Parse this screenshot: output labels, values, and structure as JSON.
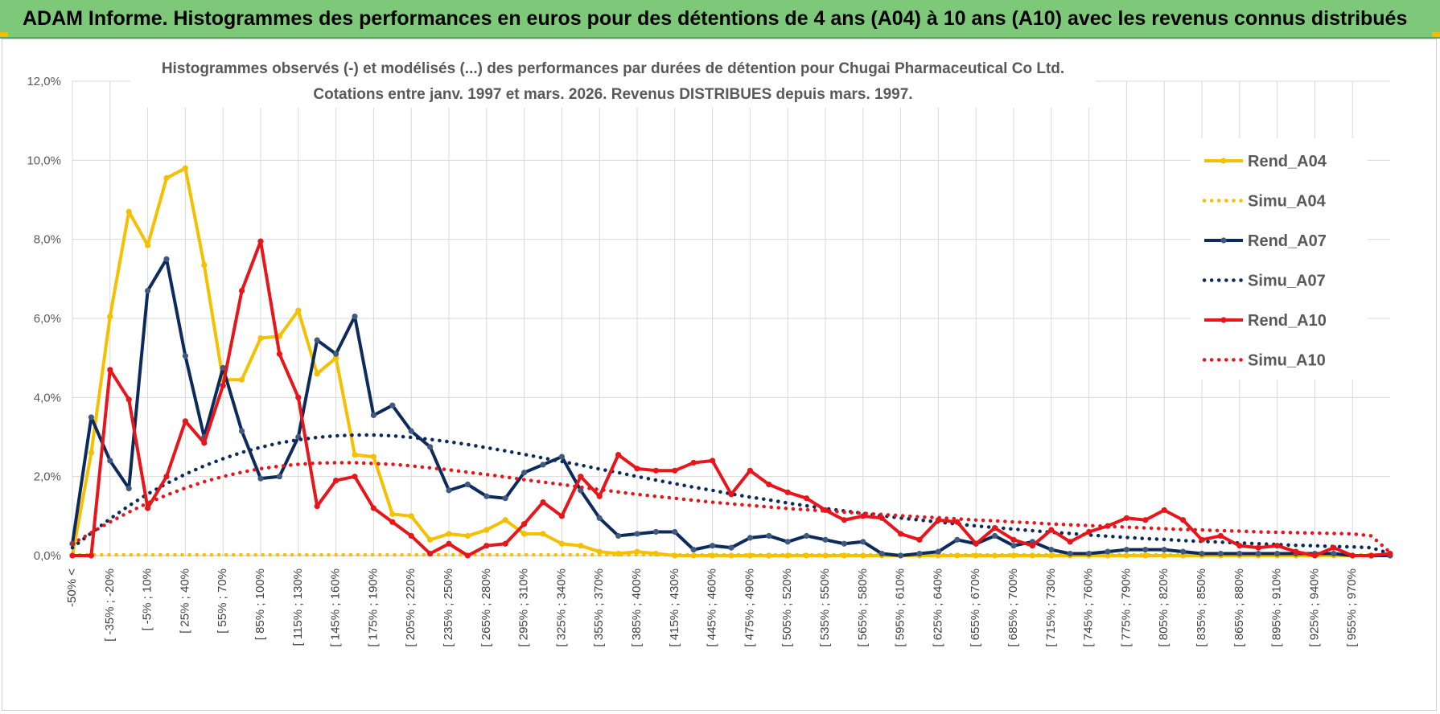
{
  "banner": {
    "text": "ADAM Informe. Histogrammes des performances en euros pour des détentions de 4 ans (A04) à 10 ans (A10) avec les revenus connus distribués"
  },
  "chart_data": {
    "type": "line",
    "title_line1": "Histogrammes observés (-) et modélisés (...) des performances par durées de détention pour Chugai Pharmaceutical Co Ltd.",
    "title_line2": "Cotations entre janv. 1997 et mars. 2026. Revenus DISTRIBUES depuis mars. 1997.",
    "ylim": [
      0,
      12
    ],
    "y_ticks": [
      "0,0%",
      "2,0%",
      "4,0%",
      "6,0%",
      "8,0%",
      "10,0%",
      "12,0%"
    ],
    "y_unit": "%",
    "grid": true,
    "legend_position": "right",
    "x_tick_labels": [
      "-50% <",
      "[ -35% ; -20%",
      "[ -5% ; 10%",
      "[ 25% ; 40%",
      "[ 55% ; 70%",
      "[ 85% ; 100%",
      "[ 115% ; 130%",
      "[ 145% ; 160%",
      "[ 175% ; 190%",
      "[ 205% ; 220%",
      "[ 235% ; 250%",
      "[ 265% ; 280%",
      "[ 295% ; 310%",
      "[ 325% ; 340%",
      "[ 355% ; 370%",
      "[ 385% ; 400%",
      "[ 415% ; 430%",
      "[ 445% ; 460%",
      "[ 475% ; 490%",
      "[ 505% ; 520%",
      "[ 535% ; 550%",
      "[ 565% ; 580%",
      "[ 595% ; 610%",
      "[ 625% ; 640%",
      "[ 655% ; 670%",
      "[ 685% ; 700%",
      "[ 715% ; 730%",
      "[ 745% ; 760%",
      "[ 775% ; 790%",
      "[ 805% ; 820%",
      "[ 835% ; 850%",
      "[ 865% ; 880%",
      "[ 895% ; 910%",
      "[ 925% ; 940%",
      "[ 955% ; 970%"
    ],
    "series": [
      {
        "name": "Rend_A04",
        "color": "#f5c000",
        "style": "solid",
        "values": [
          0.0,
          2.6,
          6.05,
          8.7,
          7.85,
          9.55,
          9.8,
          7.35,
          4.45,
          4.45,
          5.5,
          5.55,
          6.2,
          4.6,
          5.0,
          2.55,
          2.5,
          1.05,
          1.0,
          0.4,
          0.55,
          0.5,
          0.65,
          0.9,
          0.55,
          0.55,
          0.3,
          0.25,
          0.1,
          0.05,
          0.1,
          0.05,
          0,
          0,
          0,
          0,
          0,
          0,
          0,
          0,
          0,
          0,
          0,
          0,
          0,
          0,
          0,
          0,
          0,
          0,
          0,
          0,
          0,
          0,
          0,
          0,
          0,
          0,
          0,
          0,
          0,
          0,
          0,
          0,
          0,
          0,
          0,
          0,
          0,
          0,
          0
        ]
      },
      {
        "name": "Simu_A04",
        "color": "#f5c000",
        "style": "dotted",
        "values": [
          0.02,
          0.02,
          0.02,
          0.02,
          0.02,
          0.02,
          0.02,
          0.02,
          0.02,
          0.02,
          0.02,
          0.02,
          0.02,
          0.02,
          0.02,
          0.02,
          0.02,
          0.02,
          0.02,
          0.02,
          0.02,
          0.02,
          0.02,
          0.02,
          0.02,
          0.02,
          0.02,
          0.02,
          0.02,
          0.02,
          0.02,
          0.02,
          0.02,
          0.02,
          0.02,
          0.02,
          0.02,
          0.02,
          0.02,
          0.02,
          0.02,
          0.02,
          0.02,
          0.02,
          0.02,
          0.02,
          0.02,
          0.02,
          0.02,
          0.02,
          0.02,
          0.02,
          0.02,
          0.02,
          0.02,
          0.02,
          0.02,
          0.02,
          0.02,
          0.02,
          0.02,
          0.02,
          0.02,
          0.02,
          0.02,
          0.02,
          0.02,
          0.02,
          0.02,
          0.02,
          0.02
        ]
      },
      {
        "name": "Rend_A07",
        "color": "#0d2a5c",
        "style": "solid",
        "values": [
          0.3,
          3.5,
          2.4,
          1.7,
          6.7,
          7.5,
          5.05,
          3.0,
          4.75,
          3.15,
          1.95,
          2.0,
          3.0,
          5.45,
          5.1,
          6.05,
          3.55,
          3.8,
          3.15,
          2.75,
          1.65,
          1.8,
          1.5,
          1.45,
          2.1,
          2.3,
          2.5,
          1.65,
          0.95,
          0.5,
          0.55,
          0.6,
          0.6,
          0.15,
          0.25,
          0.2,
          0.45,
          0.5,
          0.35,
          0.5,
          0.4,
          0.3,
          0.35,
          0.05,
          0.0,
          0.05,
          0.1,
          0.4,
          0.3,
          0.5,
          0.25,
          0.35,
          0.15,
          0.05,
          0.05,
          0.1,
          0.15,
          0.15,
          0.15,
          0.1,
          0.05,
          0.05,
          0.05,
          0.05,
          0.05,
          0.05,
          0.05,
          0.05,
          0.0,
          0.0,
          0.0
        ]
      },
      {
        "name": "Simu_A07",
        "color": "#0d2a5c",
        "style": "dotted",
        "values": [
          0.2,
          0.57,
          0.93,
          1.26,
          1.56,
          1.82,
          2.06,
          2.27,
          2.45,
          2.61,
          2.74,
          2.85,
          2.93,
          2.99,
          3.03,
          3.05,
          3.05,
          3.03,
          2.99,
          2.94,
          2.88,
          2.81,
          2.73,
          2.65,
          2.56,
          2.47,
          2.38,
          2.29,
          2.19,
          2.1,
          2.0,
          1.91,
          1.82,
          1.73,
          1.65,
          1.56,
          1.48,
          1.41,
          1.33,
          1.26,
          1.19,
          1.13,
          1.07,
          1.01,
          0.95,
          0.9,
          0.85,
          0.8,
          0.75,
          0.71,
          0.67,
          0.63,
          0.59,
          0.56,
          0.52,
          0.49,
          0.46,
          0.43,
          0.41,
          0.38,
          0.36,
          0.34,
          0.32,
          0.3,
          0.28,
          0.26,
          0.25,
          0.23,
          0.22,
          0.2,
          0.05
        ]
      },
      {
        "name": "Rend_A10",
        "color": "#e8151b",
        "style": "solid",
        "values": [
          0.0,
          0.0,
          4.7,
          3.95,
          1.2,
          2.0,
          3.4,
          2.85,
          4.3,
          6.7,
          7.95,
          5.1,
          4.0,
          1.25,
          1.9,
          2.0,
          1.2,
          0.85,
          0.5,
          0.05,
          0.3,
          0.0,
          0.25,
          0.3,
          0.8,
          1.35,
          1.0,
          2.0,
          1.5,
          2.55,
          2.2,
          2.15,
          2.15,
          2.35,
          2.4,
          1.55,
          2.15,
          1.8,
          1.6,
          1.45,
          1.15,
          0.9,
          1.0,
          0.95,
          0.55,
          0.4,
          0.9,
          0.85,
          0.3,
          0.7,
          0.4,
          0.25,
          0.65,
          0.35,
          0.6,
          0.75,
          0.95,
          0.9,
          1.15,
          0.9,
          0.4,
          0.5,
          0.25,
          0.2,
          0.25,
          0.1,
          0.0,
          0.2,
          0.0,
          0.0,
          0.05
        ]
      },
      {
        "name": "Simu_A10",
        "color": "#e8151b",
        "style": "dotted",
        "values": [
          0.3,
          0.58,
          0.85,
          1.1,
          1.33,
          1.53,
          1.71,
          1.87,
          2.0,
          2.11,
          2.2,
          2.26,
          2.31,
          2.34,
          2.35,
          2.35,
          2.33,
          2.31,
          2.27,
          2.22,
          2.17,
          2.11,
          2.05,
          1.99,
          1.92,
          1.86,
          1.8,
          1.73,
          1.67,
          1.61,
          1.55,
          1.5,
          1.45,
          1.4,
          1.35,
          1.31,
          1.27,
          1.23,
          1.19,
          1.16,
          1.13,
          1.1,
          1.07,
          1.04,
          1.01,
          0.98,
          0.96,
          0.93,
          0.9,
          0.88,
          0.85,
          0.83,
          0.8,
          0.78,
          0.76,
          0.74,
          0.72,
          0.7,
          0.68,
          0.66,
          0.65,
          0.63,
          0.62,
          0.6,
          0.59,
          0.58,
          0.57,
          0.56,
          0.55,
          0.5,
          0.08
        ]
      }
    ]
  }
}
